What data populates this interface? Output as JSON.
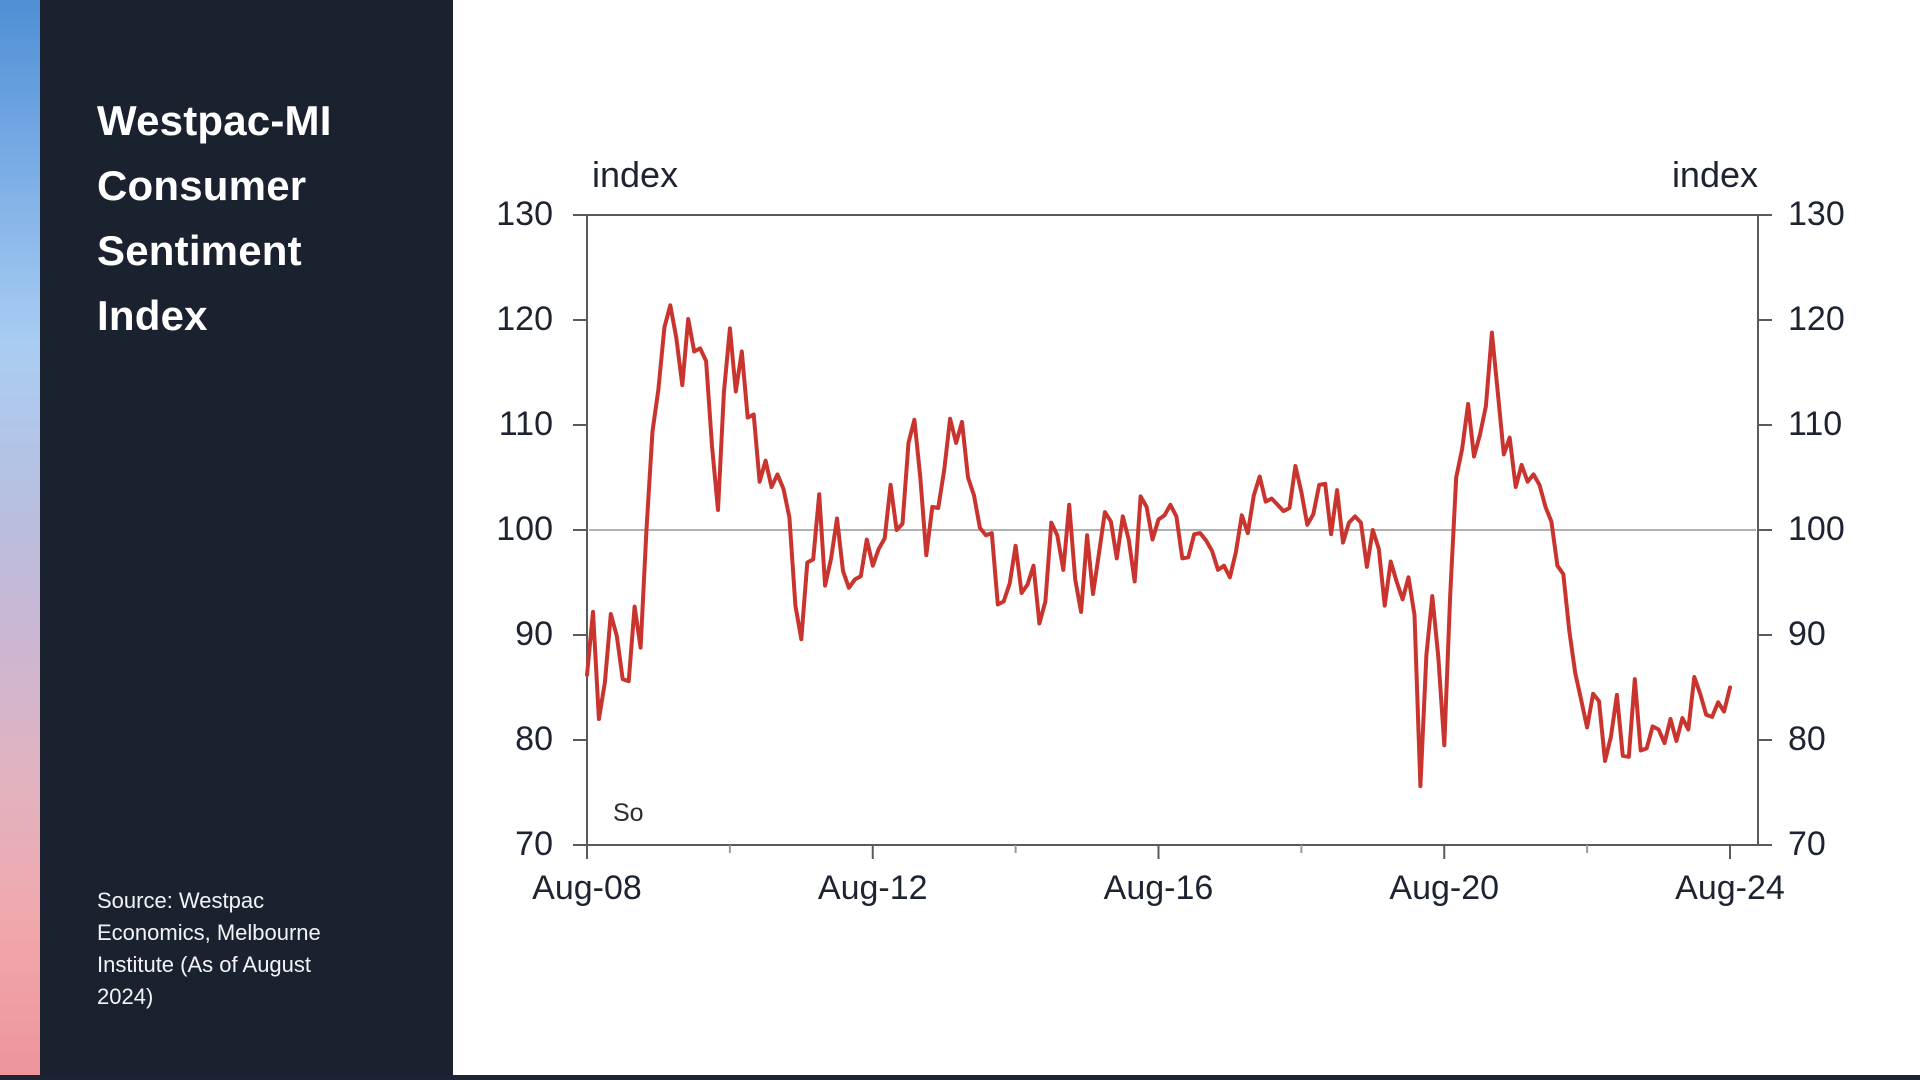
{
  "sidebar": {
    "title": "Westpac-MI Consumer Sentiment Index",
    "source_note": "Source: Westpac Economics, Melbourne Institute (As of August 2024)"
  },
  "chart": {
    "unit_label_left": "index",
    "unit_label_right": "index",
    "clipped_text": "So",
    "y_ticks": [
      70,
      80,
      90,
      100,
      110,
      120,
      130
    ],
    "x_major_ticks": [
      {
        "label": "Aug-08",
        "month": 0
      },
      {
        "label": "Aug-12",
        "month": 48
      },
      {
        "label": "Aug-16",
        "month": 96
      },
      {
        "label": "Aug-20",
        "month": 144
      },
      {
        "label": "Aug-24",
        "month": 192
      }
    ],
    "x_minor_tick_months": [
      24,
      72,
      120,
      168
    ],
    "reference_line_value": 100,
    "line_color": "#ca342e",
    "axis_color": "#595a5e",
    "minor_tick_color": "#9a9a9a",
    "grid_color": "#b1b1b1",
    "label_color": "#1d2330",
    "sidebar_bg": "#1a212f",
    "gradient_top": "#4f8fd5",
    "gradient_bottom": "#ee949c"
  },
  "chart_data": {
    "type": "line",
    "title": "Westpac-MI Consumer Sentiment Index",
    "xlabel": "",
    "ylabel": "index",
    "ylim": [
      70,
      130
    ],
    "x_start": "Aug-2008",
    "x_end": "Aug-2024",
    "interval": "monthly",
    "grid": "horizontal reference line at 100 only",
    "legend": "none",
    "series": [
      {
        "name": "Westpac-MI Consumer Sentiment Index",
        "values": [
          86.2,
          92.2,
          82.0,
          85.5,
          92.0,
          89.9,
          85.8,
          85.6,
          92.7,
          88.8,
          100.1,
          109.4,
          113.4,
          119.3,
          121.4,
          118.3,
          113.8,
          120.1,
          117.0,
          117.3,
          116.1,
          108.0,
          101.9,
          113.1,
          119.2,
          113.2,
          117.0,
          110.7,
          111.0,
          104.6,
          106.6,
          104.1,
          105.3,
          103.9,
          101.2,
          92.8,
          89.6,
          96.9,
          97.2,
          103.4,
          94.7,
          97.3,
          101.1,
          96.1,
          94.5,
          95.3,
          95.6,
          99.1,
          96.6,
          98.2,
          99.2,
          104.3,
          100.0,
          100.6,
          108.3,
          110.5,
          104.9,
          97.6,
          102.2,
          102.1,
          105.7,
          110.6,
          108.3,
          110.3,
          105.0,
          103.3,
          100.2,
          99.5,
          99.7,
          92.9,
          93.2,
          94.9,
          98.5,
          94.0,
          94.8,
          96.6,
          91.1,
          93.2,
          100.7,
          99.5,
          96.2,
          102.4,
          95.3,
          92.2,
          99.5,
          93.9,
          97.8,
          101.7,
          100.8,
          97.3,
          101.3,
          99.1,
          95.1,
          103.2,
          102.2,
          99.1,
          101.0,
          101.4,
          102.4,
          101.3,
          97.3,
          97.4,
          99.6,
          99.7,
          99.0,
          98.0,
          96.2,
          96.6,
          95.5,
          97.9,
          101.4,
          99.7,
          103.3,
          105.1,
          102.7,
          103.0,
          102.4,
          101.8,
          102.1,
          106.1,
          103.6,
          100.5,
          101.5,
          104.3,
          104.4,
          99.6,
          103.8,
          98.8,
          100.7,
          101.3,
          100.7,
          96.5,
          100.0,
          98.2,
          92.8,
          97.0,
          95.1,
          93.4,
          95.5,
          91.9,
          75.6,
          88.1,
          93.7,
          87.9,
          79.5,
          93.8,
          105.0,
          107.7,
          112.0,
          107.0,
          109.1,
          111.8,
          118.8,
          113.1,
          107.2,
          108.8,
          104.1,
          106.2,
          104.6,
          105.3,
          104.3,
          102.2,
          100.8,
          96.6,
          95.8,
          90.4,
          86.4,
          83.8,
          81.2,
          84.4,
          83.7,
          78.0,
          80.3,
          84.3,
          78.5,
          78.4,
          85.8,
          79.0,
          79.2,
          81.3,
          81.0,
          79.7,
          82.0,
          79.9,
          82.1,
          81.0,
          86.0,
          84.4,
          82.4,
          82.2,
          83.6,
          82.7,
          85.0
        ]
      }
    ]
  }
}
